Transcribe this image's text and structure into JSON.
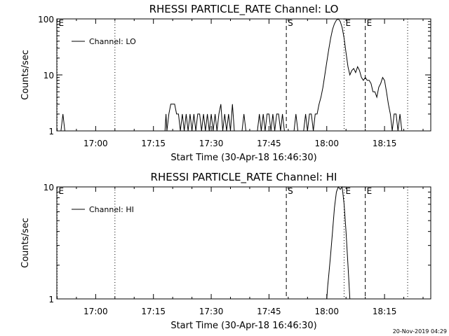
{
  "footer_timestamp": "20-Nov-2019 04:29",
  "chart_data": [
    {
      "type": "line",
      "title": "RHESSI PARTICLE_RATE Channel: LO",
      "xlabel": "Start Time (30-Apr-18 16:46:30)",
      "ylabel": "Counts/sec",
      "y_scale": "log",
      "xlim": [
        "16:49:55",
        "18:27:00"
      ],
      "ylim": [
        1,
        100
      ],
      "x_ticks": [
        "17:00",
        "17:15",
        "17:30",
        "17:45",
        "18:00",
        "18:15"
      ],
      "y_ticks": [
        "1",
        "10",
        "100"
      ],
      "legend": {
        "label": "Channel: LO",
        "placement": "top-left"
      },
      "markers": [
        {
          "label": "E",
          "time": "16:50:00",
          "style": "dotted"
        },
        {
          "label": "",
          "time": "17:05:00",
          "style": "dotted"
        },
        {
          "label": "S",
          "time": "17:49:30",
          "style": "dashed"
        },
        {
          "label": "E",
          "time": "18:04:30",
          "style": "dotted"
        },
        {
          "label": "E",
          "time": "18:10:00",
          "style": "dashed"
        },
        {
          "label": "",
          "time": "18:21:00",
          "style": "dotted"
        }
      ],
      "series": [
        {
          "name": "Channel: LO",
          "points": [
            [
              "16:51:00",
              1
            ],
            [
              "16:51:30",
              2
            ],
            [
              "16:52:00",
              1
            ],
            [
              "17:18:00",
              1
            ],
            [
              "17:18:15",
              2
            ],
            [
              "17:18:30",
              1
            ],
            [
              "17:19:00",
              2
            ],
            [
              "17:19:30",
              3
            ],
            [
              "17:20:30",
              3
            ],
            [
              "17:21:00",
              2
            ],
            [
              "17:21:30",
              2
            ],
            [
              "17:22:00",
              1
            ],
            [
              "17:22:30",
              2
            ],
            [
              "17:23:00",
              1
            ],
            [
              "17:23:30",
              2
            ],
            [
              "17:24:00",
              1
            ],
            [
              "17:24:30",
              2
            ],
            [
              "17:25:00",
              1
            ],
            [
              "17:25:30",
              2
            ],
            [
              "17:26:00",
              1
            ],
            [
              "17:26:30",
              2
            ],
            [
              "17:27:00",
              2
            ],
            [
              "17:27:30",
              1
            ],
            [
              "17:28:00",
              2
            ],
            [
              "17:28:30",
              1
            ],
            [
              "17:29:00",
              2
            ],
            [
              "17:29:30",
              1
            ],
            [
              "17:30:00",
              2
            ],
            [
              "17:30:30",
              1
            ],
            [
              "17:31:00",
              2
            ],
            [
              "17:31:30",
              1
            ],
            [
              "17:32:00",
              2
            ],
            [
              "17:32:30",
              3
            ],
            [
              "17:33:00",
              1
            ],
            [
              "17:33:30",
              2
            ],
            [
              "17:34:00",
              1
            ],
            [
              "17:34:30",
              2
            ],
            [
              "17:35:00",
              1
            ],
            [
              "17:35:30",
              3
            ],
            [
              "17:36:00",
              1
            ],
            [
              "17:38:00",
              1
            ],
            [
              "17:38:30",
              2
            ],
            [
              "17:39:00",
              1
            ],
            [
              "17:42:00",
              1
            ],
            [
              "17:42:30",
              2
            ],
            [
              "17:43:00",
              1
            ],
            [
              "17:43:30",
              2
            ],
            [
              "17:44:00",
              1
            ],
            [
              "17:44:30",
              2
            ],
            [
              "17:45:00",
              2
            ],
            [
              "17:45:30",
              1
            ],
            [
              "17:46:00",
              2
            ],
            [
              "17:46:30",
              1
            ],
            [
              "17:47:00",
              2
            ],
            [
              "17:47:30",
              2
            ],
            [
              "17:48:00",
              1
            ],
            [
              "17:48:30",
              2
            ],
            [
              "17:49:00",
              1
            ],
            [
              "17:51:30",
              1
            ],
            [
              "17:52:00",
              2
            ],
            [
              "17:52:30",
              1
            ],
            [
              "17:54:00",
              1
            ],
            [
              "17:54:30",
              2
            ],
            [
              "17:55:00",
              1
            ],
            [
              "17:55:30",
              2
            ],
            [
              "17:56:00",
              2
            ],
            [
              "17:56:30",
              1
            ],
            [
              "17:57:00",
              2
            ],
            [
              "17:57:30",
              2
            ],
            [
              "17:58:00",
              3
            ],
            [
              "17:58:30",
              4
            ],
            [
              "17:59:00",
              6
            ],
            [
              "17:59:30",
              10
            ],
            [
              "18:00:00",
              17
            ],
            [
              "18:00:30",
              28
            ],
            [
              "18:01:00",
              45
            ],
            [
              "18:01:30",
              65
            ],
            [
              "18:02:00",
              82
            ],
            [
              "18:02:30",
              95
            ],
            [
              "18:03:00",
              100
            ],
            [
              "18:03:30",
              90
            ],
            [
              "18:04:00",
              70
            ],
            [
              "18:04:30",
              45
            ],
            [
              "18:05:00",
              25
            ],
            [
              "18:05:30",
              14
            ],
            [
              "18:06:00",
              10
            ],
            [
              "18:06:30",
              12
            ],
            [
              "18:07:00",
              13
            ],
            [
              "18:07:30",
              11
            ],
            [
              "18:08:00",
              14
            ],
            [
              "18:08:30",
              12
            ],
            [
              "18:09:00",
              9
            ],
            [
              "18:09:30",
              8
            ],
            [
              "18:10:00",
              9
            ],
            [
              "18:10:30",
              8
            ],
            [
              "18:11:00",
              8
            ],
            [
              "18:11:30",
              7
            ],
            [
              "18:12:00",
              5
            ],
            [
              "18:12:30",
              5
            ],
            [
              "18:13:00",
              4
            ],
            [
              "18:13:30",
              6
            ],
            [
              "18:14:00",
              7
            ],
            [
              "18:14:30",
              9
            ],
            [
              "18:15:00",
              8
            ],
            [
              "18:15:30",
              5
            ],
            [
              "18:16:00",
              3
            ],
            [
              "18:16:30",
              2
            ],
            [
              "18:17:00",
              1
            ],
            [
              "18:17:30",
              2
            ],
            [
              "18:18:00",
              2
            ],
            [
              "18:18:30",
              1
            ],
            [
              "18:19:00",
              2
            ],
            [
              "18:19:30",
              1
            ]
          ]
        }
      ]
    },
    {
      "type": "line",
      "title": "RHESSI PARTICLE_RATE Channel: HI",
      "xlabel": "Start Time (30-Apr-18 16:46:30)",
      "ylabel": "Counts/sec",
      "y_scale": "log",
      "xlim": [
        "16:49:55",
        "18:27:00"
      ],
      "ylim": [
        1,
        10
      ],
      "x_ticks": [
        "17:00",
        "17:15",
        "17:30",
        "17:45",
        "18:00",
        "18:15"
      ],
      "y_ticks": [
        "1",
        "10"
      ],
      "legend": {
        "label": "Channel: HI",
        "placement": "top-left"
      },
      "markers": [
        {
          "label": "E",
          "time": "16:50:00",
          "style": "dotted"
        },
        {
          "label": "",
          "time": "17:05:00",
          "style": "dotted"
        },
        {
          "label": "S",
          "time": "17:49:30",
          "style": "dashed"
        },
        {
          "label": "E",
          "time": "18:04:30",
          "style": "dotted"
        },
        {
          "label": "E",
          "time": "18:10:00",
          "style": "dashed"
        },
        {
          "label": "",
          "time": "18:21:00",
          "style": "dotted"
        }
      ],
      "series": [
        {
          "name": "Channel: HI",
          "points": [
            [
              "18:00:00",
              1
            ],
            [
              "18:00:15",
              1.3
            ],
            [
              "18:00:30",
              1.6
            ],
            [
              "18:01:00",
              2.5
            ],
            [
              "18:01:30",
              4
            ],
            [
              "18:02:00",
              6.5
            ],
            [
              "18:02:30",
              9
            ],
            [
              "18:03:00",
              10
            ],
            [
              "18:03:30",
              9.5
            ],
            [
              "18:04:00",
              10
            ],
            [
              "18:04:30",
              7
            ],
            [
              "18:05:00",
              4
            ],
            [
              "18:05:30",
              2
            ],
            [
              "18:06:00",
              1
            ]
          ]
        }
      ]
    }
  ]
}
